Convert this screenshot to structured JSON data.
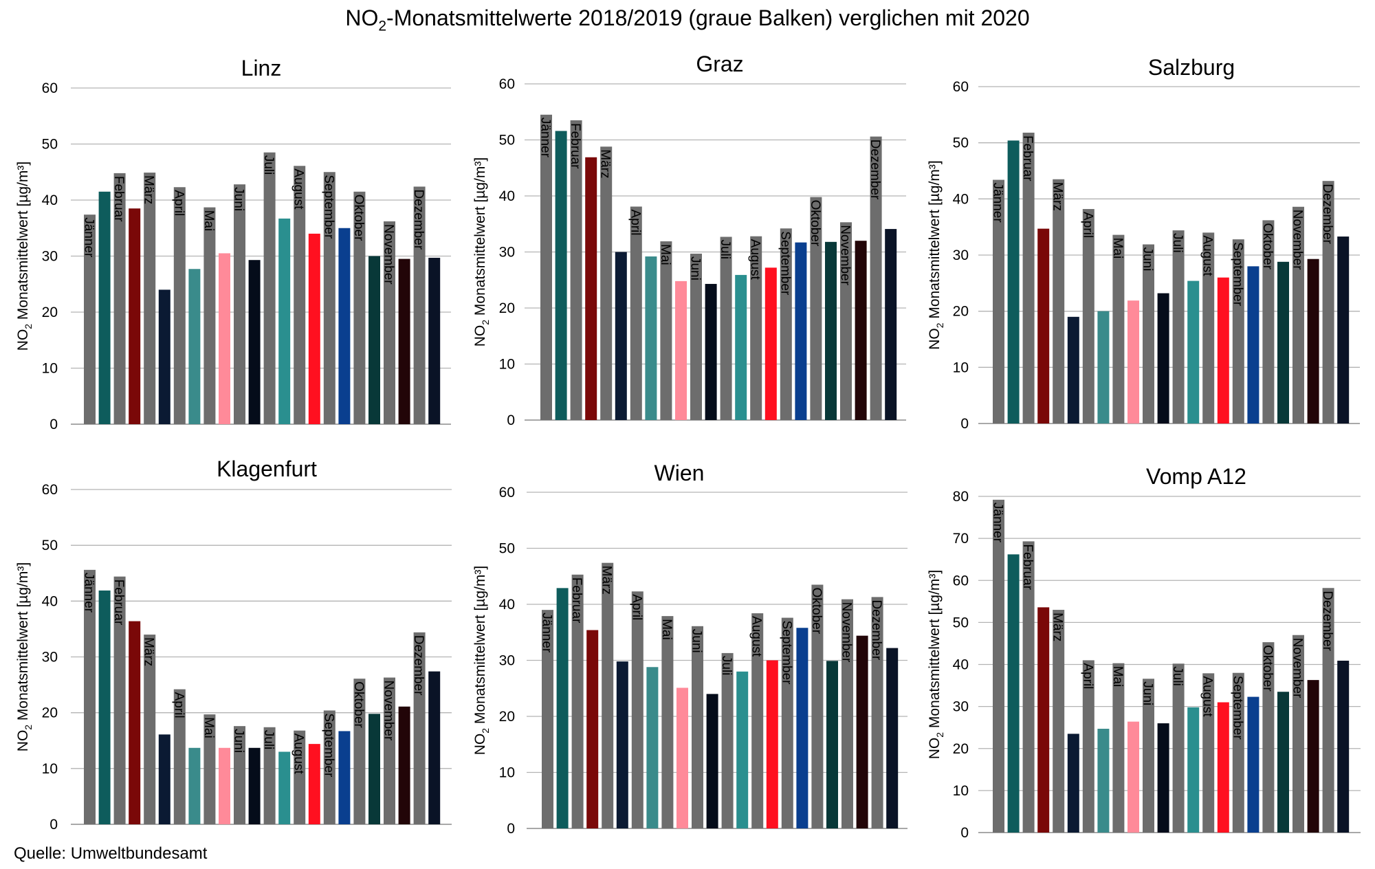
{
  "title": {
    "prefix": "NO",
    "subscript": "2",
    "suffix": "-Monatsmittelwerte 2018/2019 (graue Balken) verglichen mit 2020"
  },
  "source": "Quelle: Umweltbundesamt",
  "ylabel": {
    "prefix": "NO",
    "subscript": "2",
    "suffix": " Monatsmittelwert [µg/m³]"
  },
  "months": [
    "Jänner",
    "Februar",
    "März",
    "April",
    "Mai",
    "Juni",
    "Juli",
    "August",
    "September",
    "Oktober",
    "November",
    "Dezember"
  ],
  "colors": {
    "reference_grey": "#6d6d6d",
    "grid": "#b3b3b3",
    "axis": "#8c8c8c",
    "month_2020": [
      "#0e5c5c",
      "#7a0808",
      "#0b1a33",
      "#3a8b8b",
      "#ff8a99",
      "#050c1a",
      "#2a8f8f",
      "#ff1020",
      "#0a3f8f",
      "#083838",
      "#220508",
      "#0a1326"
    ]
  },
  "chart_data": [
    {
      "type": "bar",
      "title": "Linz",
      "ylim": [
        0,
        60
      ],
      "yticks": [
        0,
        10,
        20,
        30,
        40,
        50,
        60
      ],
      "show_ylabel": true,
      "categories": [
        "Jänner",
        "Februar",
        "März",
        "April",
        "Mai",
        "Juni",
        "Juli",
        "August",
        "September",
        "Oktober",
        "November",
        "Dezember"
      ],
      "series": [
        {
          "name": "2018/2019",
          "values": [
            37.4,
            44.8,
            44.9,
            42.3,
            38.7,
            42.8,
            48.5,
            46.1,
            45.0,
            41.5,
            36.2,
            42.4
          ]
        },
        {
          "name": "2020",
          "values": [
            41.5,
            38.5,
            24.0,
            27.7,
            30.5,
            29.3,
            36.7,
            34.0,
            35.0,
            30.0,
            29.5,
            29.7
          ]
        }
      ]
    },
    {
      "type": "bar",
      "title": "Graz",
      "ylim": [
        0,
        60
      ],
      "yticks": [
        0,
        10,
        20,
        30,
        40,
        50,
        60
      ],
      "show_ylabel": true,
      "categories": [
        "Jänner",
        "Februar",
        "März",
        "April",
        "Mai",
        "Juni",
        "Juli",
        "August",
        "September",
        "Oktober",
        "November",
        "Dezember"
      ],
      "series": [
        {
          "name": "2018/2019",
          "values": [
            54.5,
            53.5,
            48.8,
            38.1,
            31.9,
            29.7,
            32.7,
            32.8,
            34.2,
            39.8,
            35.3,
            50.6
          ]
        },
        {
          "name": "2020",
          "values": [
            51.6,
            46.9,
            30.0,
            29.2,
            24.8,
            24.3,
            25.9,
            27.2,
            31.7,
            31.8,
            32.0,
            34.1
          ]
        }
      ]
    },
    {
      "type": "bar",
      "title": "Salzburg",
      "ylim": [
        0,
        60
      ],
      "yticks": [
        0,
        10,
        20,
        30,
        40,
        50,
        60
      ],
      "show_ylabel": true,
      "categories": [
        "Jänner",
        "Februar",
        "März",
        "April",
        "Mai",
        "Juni",
        "Juli",
        "August",
        "September",
        "Oktober",
        "November",
        "Dezember"
      ],
      "series": [
        {
          "name": "2018/2019",
          "values": [
            43.4,
            51.8,
            43.5,
            38.2,
            33.6,
            31.9,
            34.4,
            34.0,
            32.8,
            36.2,
            38.6,
            43.2
          ]
        },
        {
          "name": "2020",
          "values": [
            50.4,
            34.7,
            19.0,
            20.0,
            21.9,
            23.2,
            25.4,
            26.0,
            28.0,
            28.8,
            29.3,
            33.3
          ]
        }
      ]
    },
    {
      "type": "bar",
      "title": "Klagenfurt",
      "ylim": [
        0,
        60
      ],
      "yticks": [
        0,
        10,
        20,
        30,
        40,
        50,
        60
      ],
      "show_ylabel": true,
      "categories": [
        "Jänner",
        "Februar",
        "März",
        "April",
        "Mai",
        "Juni",
        "Juli",
        "August",
        "September",
        "Oktober",
        "November",
        "Dezember"
      ],
      "series": [
        {
          "name": "2018/2019",
          "values": [
            45.6,
            44.4,
            34.0,
            24.2,
            19.7,
            17.6,
            17.4,
            16.8,
            20.4,
            26.1,
            26.3,
            34.4
          ]
        },
        {
          "name": "2020",
          "values": [
            41.9,
            36.4,
            16.1,
            13.7,
            13.7,
            13.7,
            13.0,
            14.4,
            16.7,
            19.8,
            21.1,
            27.4
          ]
        }
      ]
    },
    {
      "type": "bar",
      "title": "Wien",
      "ylim": [
        0,
        60
      ],
      "yticks": [
        0,
        10,
        20,
        30,
        40,
        50,
        60
      ],
      "show_ylabel": true,
      "categories": [
        "Jänner",
        "Februar",
        "März",
        "April",
        "Mai",
        "Juni",
        "Juli",
        "August",
        "September",
        "Oktober",
        "November",
        "Dezember"
      ],
      "series": [
        {
          "name": "2018/2019",
          "values": [
            39.0,
            45.3,
            47.4,
            42.3,
            37.9,
            36.1,
            31.3,
            38.4,
            37.6,
            43.5,
            40.9,
            41.3
          ]
        },
        {
          "name": "2020",
          "values": [
            42.9,
            35.4,
            29.8,
            28.8,
            25.1,
            24.0,
            28.0,
            30.0,
            35.8,
            29.9,
            34.4,
            32.2
          ]
        }
      ]
    },
    {
      "type": "bar",
      "title": "Vomp A12",
      "ylim": [
        0,
        80
      ],
      "yticks": [
        0,
        10,
        20,
        30,
        40,
        50,
        60,
        70,
        80
      ],
      "show_ylabel": true,
      "categories": [
        "Jänner",
        "Februar",
        "März",
        "April",
        "Mai",
        "Juni",
        "Juli",
        "August",
        "September",
        "Oktober",
        "November",
        "Dezember"
      ],
      "series": [
        {
          "name": "2018/2019",
          "values": [
            79.2,
            69.3,
            53.0,
            41.0,
            40.3,
            36.6,
            40.2,
            37.9,
            38.0,
            45.3,
            47.0,
            58.2
          ]
        },
        {
          "name": "2020",
          "values": [
            66.2,
            53.6,
            23.5,
            24.7,
            26.4,
            26.0,
            29.8,
            31.0,
            32.3,
            33.5,
            36.3,
            40.9
          ]
        }
      ]
    }
  ]
}
